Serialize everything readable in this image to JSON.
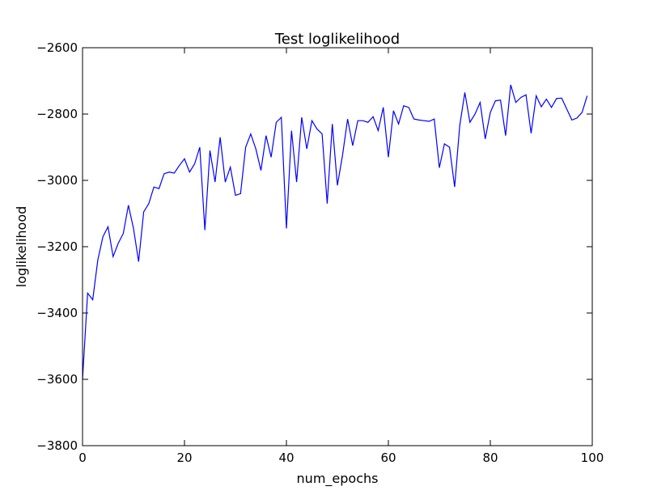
{
  "chart_data": {
    "type": "line",
    "title": "Test loglikelihood",
    "xlabel": "num_epochs",
    "ylabel": "loglikelihood",
    "xlim": [
      0,
      100
    ],
    "ylim": [
      -3800,
      -2600
    ],
    "x_ticks": [
      0,
      20,
      40,
      60,
      80,
      100
    ],
    "y_ticks": [
      -3800,
      -3600,
      -3400,
      -3200,
      -3000,
      -2800,
      -2600
    ],
    "x_tick_labels": [
      "0",
      "20",
      "40",
      "60",
      "80",
      "100"
    ],
    "y_tick_labels": [
      "−3800",
      "−3600",
      "−3400",
      "−3200",
      "−3000",
      "−2800",
      "−2600"
    ],
    "grid": false,
    "line_color": "#0000ff",
    "series": [
      {
        "x": [
          0,
          1,
          2,
          3,
          4,
          5,
          6,
          7,
          8,
          9,
          10,
          11,
          12,
          13,
          14,
          15,
          16,
          17,
          18,
          19,
          20,
          21,
          22,
          23,
          24,
          25,
          26,
          27,
          28,
          29,
          30,
          31,
          32,
          33,
          34,
          35,
          36,
          37,
          38,
          39,
          40,
          41,
          42,
          43,
          44,
          45,
          46,
          47,
          48,
          49,
          50,
          51,
          52,
          53,
          54,
          55,
          56,
          57,
          58,
          59,
          60,
          61,
          62,
          63,
          64,
          65,
          66,
          67,
          68,
          69,
          70,
          71,
          72,
          73,
          74,
          75,
          76,
          77,
          78,
          79,
          80,
          81,
          82,
          83,
          84,
          85,
          86,
          87,
          88,
          89,
          90,
          91,
          92,
          93,
          94,
          95,
          96,
          97,
          98,
          99
        ],
        "values": [
          -3600,
          -3340,
          -3360,
          -3240,
          -3170,
          -3140,
          -3230,
          -3190,
          -3160,
          -3075,
          -3145,
          -3245,
          -3095,
          -3070,
          -3020,
          -3025,
          -2980,
          -2975,
          -2978,
          -2955,
          -2935,
          -2975,
          -2950,
          -2900,
          -3150,
          -2910,
          -3005,
          -2870,
          -3005,
          -2960,
          -3045,
          -3040,
          -2900,
          -2860,
          -2905,
          -2970,
          -2865,
          -2930,
          -2825,
          -2810,
          -3145,
          -2850,
          -3005,
          -2810,
          -2905,
          -2820,
          -2845,
          -2860,
          -3070,
          -2830,
          -3015,
          -2925,
          -2815,
          -2895,
          -2820,
          -2820,
          -2825,
          -2808,
          -2850,
          -2780,
          -2930,
          -2790,
          -2830,
          -2775,
          -2780,
          -2815,
          -2818,
          -2820,
          -2822,
          -2815,
          -2962,
          -2890,
          -2900,
          -3020,
          -2835,
          -2735,
          -2825,
          -2800,
          -2765,
          -2875,
          -2795,
          -2760,
          -2758,
          -2865,
          -2712,
          -2765,
          -2750,
          -2742,
          -2858,
          -2745,
          -2778,
          -2755,
          -2780,
          -2753,
          -2752,
          -2785,
          -2818,
          -2812,
          -2795,
          -2745
        ]
      }
    ]
  }
}
